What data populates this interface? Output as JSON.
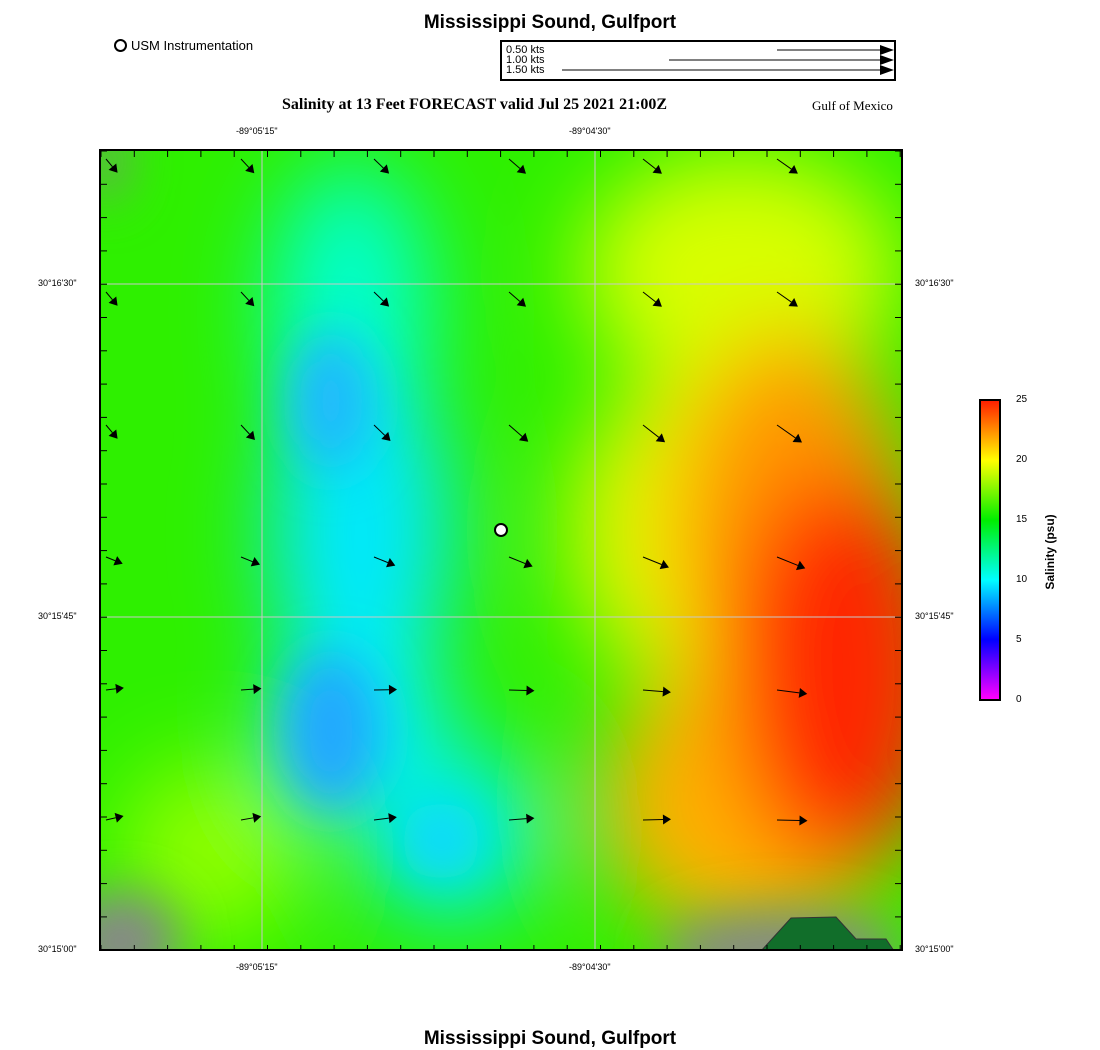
{
  "title": "Mississippi Sound, Gulfport",
  "footer_title": "Mississippi Sound, Gulfport",
  "station_legend": "USM Instrumentation",
  "vector_legend": [
    "0.50 kts",
    "1.00 kts",
    "1.50 kts"
  ],
  "subtitle": "Salinity at 13 Feet FORECAST valid Jul 25 2021 21:00Z",
  "region": "Gulf of Mexico",
  "lon_ticks": [
    "-89°05'15\"",
    "-89°04'30\""
  ],
  "lat_ticks": [
    "30°16'30\"",
    "30°15'45\"",
    "30°15'00\""
  ],
  "colorbar": {
    "label": "Salinity (psu)",
    "ticks": [
      "25",
      "20",
      "15",
      "10",
      "5",
      "0"
    ],
    "range": [
      0,
      25
    ]
  },
  "colors": {
    "land": "#116e2a",
    "nodata": "#888888"
  }
}
